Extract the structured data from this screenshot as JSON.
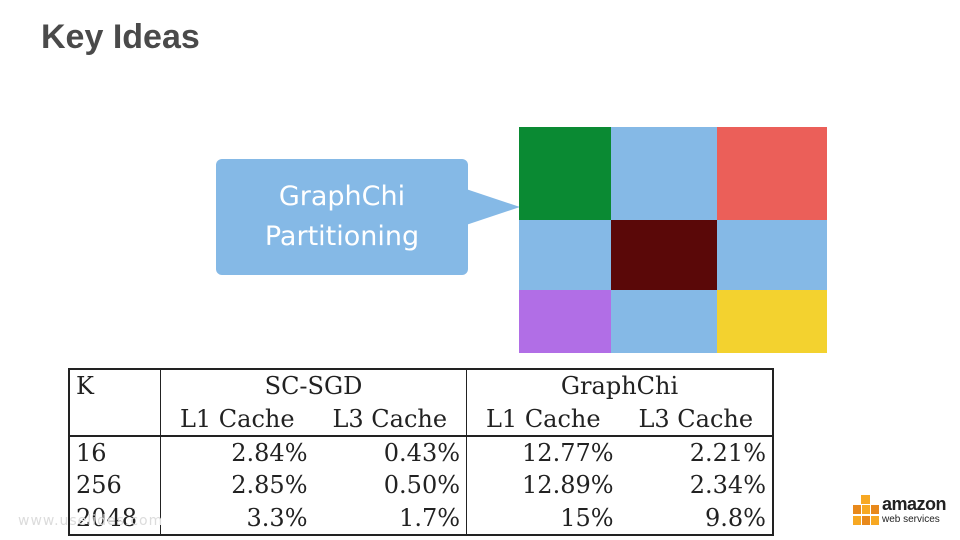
{
  "slide": {
    "title": "Key Ideas",
    "callout": {
      "line1": "GraphChi",
      "line2": "Partitioning"
    },
    "grid_colors": [
      [
        "#0a8a33",
        "#85b9e6",
        "#eb5f59"
      ],
      [
        "#85b9e6",
        "#5a0808",
        "#85b9e6"
      ],
      [
        "#b16ee6",
        "#85b9e6",
        "#f3d22f"
      ]
    ],
    "table": {
      "header_k": "K",
      "group1": "SC-SGD",
      "group2": "GraphChi",
      "sub": [
        "L1 Cache",
        "L3 Cache",
        "L1 Cache",
        "L3 Cache"
      ],
      "rows": [
        [
          "16",
          "2.84%",
          "0.43%",
          "12.77%",
          "2.21%"
        ],
        [
          "256",
          "2.85%",
          "0.50%",
          "12.89%",
          "2.34%"
        ],
        [
          "2048",
          "3.3%",
          "1.7%",
          "15%",
          "9.8%"
        ]
      ]
    },
    "watermark": "www.uselides.com",
    "logo": {
      "brand": "amazon",
      "sub": "web services"
    }
  }
}
